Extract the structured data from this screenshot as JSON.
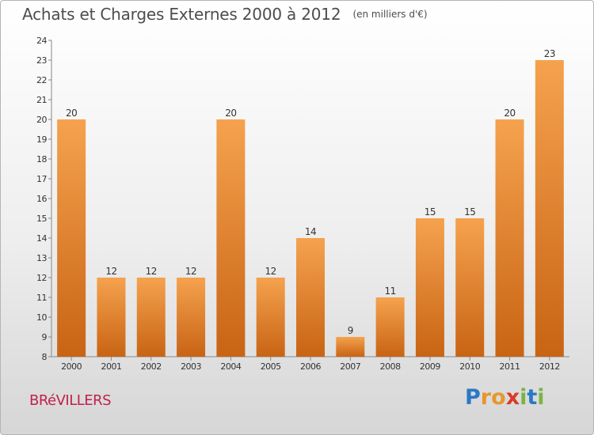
{
  "header": {
    "title": "Achats et Charges Externes 2000 à 2012",
    "subtitle": "(en milliers d'€)"
  },
  "footer": {
    "town": "BRéVILLERS",
    "brand": "Proxiti",
    "brand_letters": [
      {
        "ch": "P",
        "color": "#2a79c4"
      },
      {
        "ch": "r",
        "color": "#e8962e"
      },
      {
        "ch": "o",
        "color": "#e8962e"
      },
      {
        "ch": "x",
        "color": "#d93a2b"
      },
      {
        "ch": "i",
        "color": "#7cb342"
      },
      {
        "ch": "t",
        "color": "#2a79c4"
      },
      {
        "ch": "i",
        "color": "#7cb342"
      }
    ]
  },
  "chart_data": {
    "type": "bar",
    "title": "Achats et Charges Externes 2000 à 2012",
    "subtitle": "(en milliers d'€)",
    "categories": [
      "2000",
      "2001",
      "2002",
      "2003",
      "2004",
      "2005",
      "2006",
      "2007",
      "2008",
      "2009",
      "2010",
      "2011",
      "2012"
    ],
    "values": [
      20,
      12,
      12,
      12,
      20,
      12,
      14,
      9,
      11,
      15,
      15,
      20,
      23
    ],
    "ylim": [
      8,
      24
    ],
    "yticks": [
      8,
      9,
      10,
      11,
      12,
      13,
      14,
      15,
      16,
      17,
      18,
      19,
      20,
      21,
      22,
      23,
      24
    ],
    "grid": false,
    "data_labels": true,
    "colors": {
      "bar_light": "#f5a24e",
      "bar_dark": "#c86414",
      "axis": "#888888",
      "text": "#333333"
    }
  }
}
